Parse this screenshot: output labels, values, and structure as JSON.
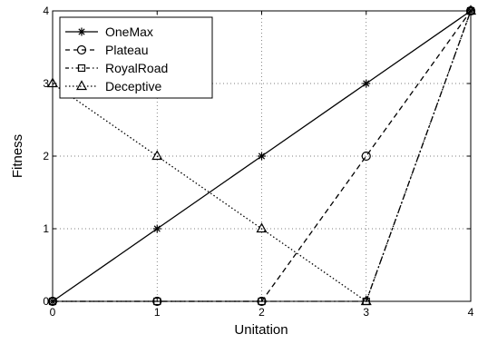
{
  "chart_data": {
    "type": "line",
    "xlabel": "Unitation",
    "ylabel": "Fitness",
    "xlim": [
      0,
      4
    ],
    "ylim": [
      0,
      4
    ],
    "xticks": [
      "0",
      "1",
      "2",
      "3",
      "4"
    ],
    "yticks": [
      "0",
      "1",
      "2",
      "3",
      "4"
    ],
    "grid": true,
    "grid_style": "dotted",
    "legend_position": "top-left",
    "x": [
      0,
      1,
      2,
      3,
      4
    ],
    "series": [
      {
        "name": "OneMax",
        "values": [
          0,
          1,
          2,
          3,
          4
        ],
        "line": "solid",
        "marker": "star"
      },
      {
        "name": "Plateau",
        "values": [
          0,
          0,
          0,
          2,
          4
        ],
        "line": "dashed",
        "marker": "circle"
      },
      {
        "name": "RoyalRoad",
        "values": [
          0,
          0,
          0,
          0,
          4
        ],
        "line": "dashdot",
        "marker": "square"
      },
      {
        "name": "Deceptive",
        "values": [
          3,
          2,
          1,
          0,
          4
        ],
        "line": "dotted",
        "marker": "triangle"
      }
    ]
  }
}
